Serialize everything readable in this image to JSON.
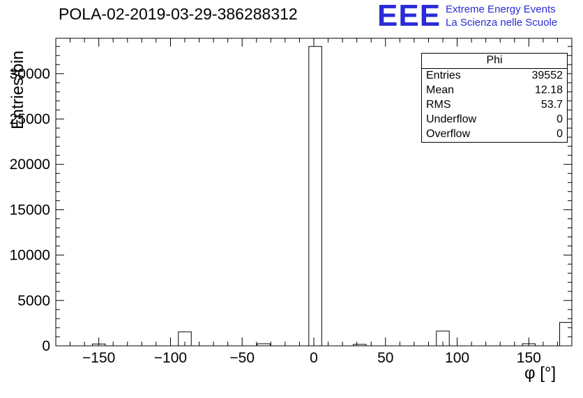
{
  "page": {
    "background": "#ffffff"
  },
  "header": {
    "title": "POLA-02-2019-03-29-386288312",
    "logo": {
      "text": "EEE",
      "line1": "Extreme Energy Events",
      "line2": "La Scienza nelle Scuole",
      "color": "#2a2ad8"
    }
  },
  "axes": {
    "xlabel": "φ [°]",
    "ylabel": "Entries/bin"
  },
  "stats": {
    "title": "Phi",
    "rows": [
      {
        "label": "Entries",
        "value": "39552"
      },
      {
        "label": "Mean",
        "value": "12.18"
      },
      {
        "label": "RMS",
        "value": "53.7"
      },
      {
        "label": "Underflow",
        "value": "0"
      },
      {
        "label": "Overflow",
        "value": "0"
      }
    ]
  },
  "chart_data": {
    "type": "bar",
    "style": "histogram-outline",
    "title": "POLA-02-2019-03-29-386288312",
    "xlabel": "phi [deg]",
    "ylabel": "Entries/bin",
    "xlim": [
      -180,
      180
    ],
    "ylim": [
      0,
      33900
    ],
    "x_ticks": [
      -150,
      -100,
      -50,
      0,
      50,
      100,
      150
    ],
    "y_ticks": [
      0,
      5000,
      10000,
      15000,
      20000,
      25000,
      30000
    ],
    "x_minor_step": 10,
    "y_minor_step": 1000,
    "grid": false,
    "bin_width": 9,
    "bar_fill": "#ffffff",
    "bar_stroke": "#000000",
    "bars": [
      {
        "center": -150,
        "count": 200
      },
      {
        "center": -90,
        "count": 1540
      },
      {
        "center": -35,
        "count": 230
      },
      {
        "center": 1,
        "count": 33000
      },
      {
        "center": 32,
        "count": 160
      },
      {
        "center": 90,
        "count": 1620
      },
      {
        "center": 150,
        "count": 230
      },
      {
        "center": 176,
        "count": 2580
      }
    ]
  }
}
